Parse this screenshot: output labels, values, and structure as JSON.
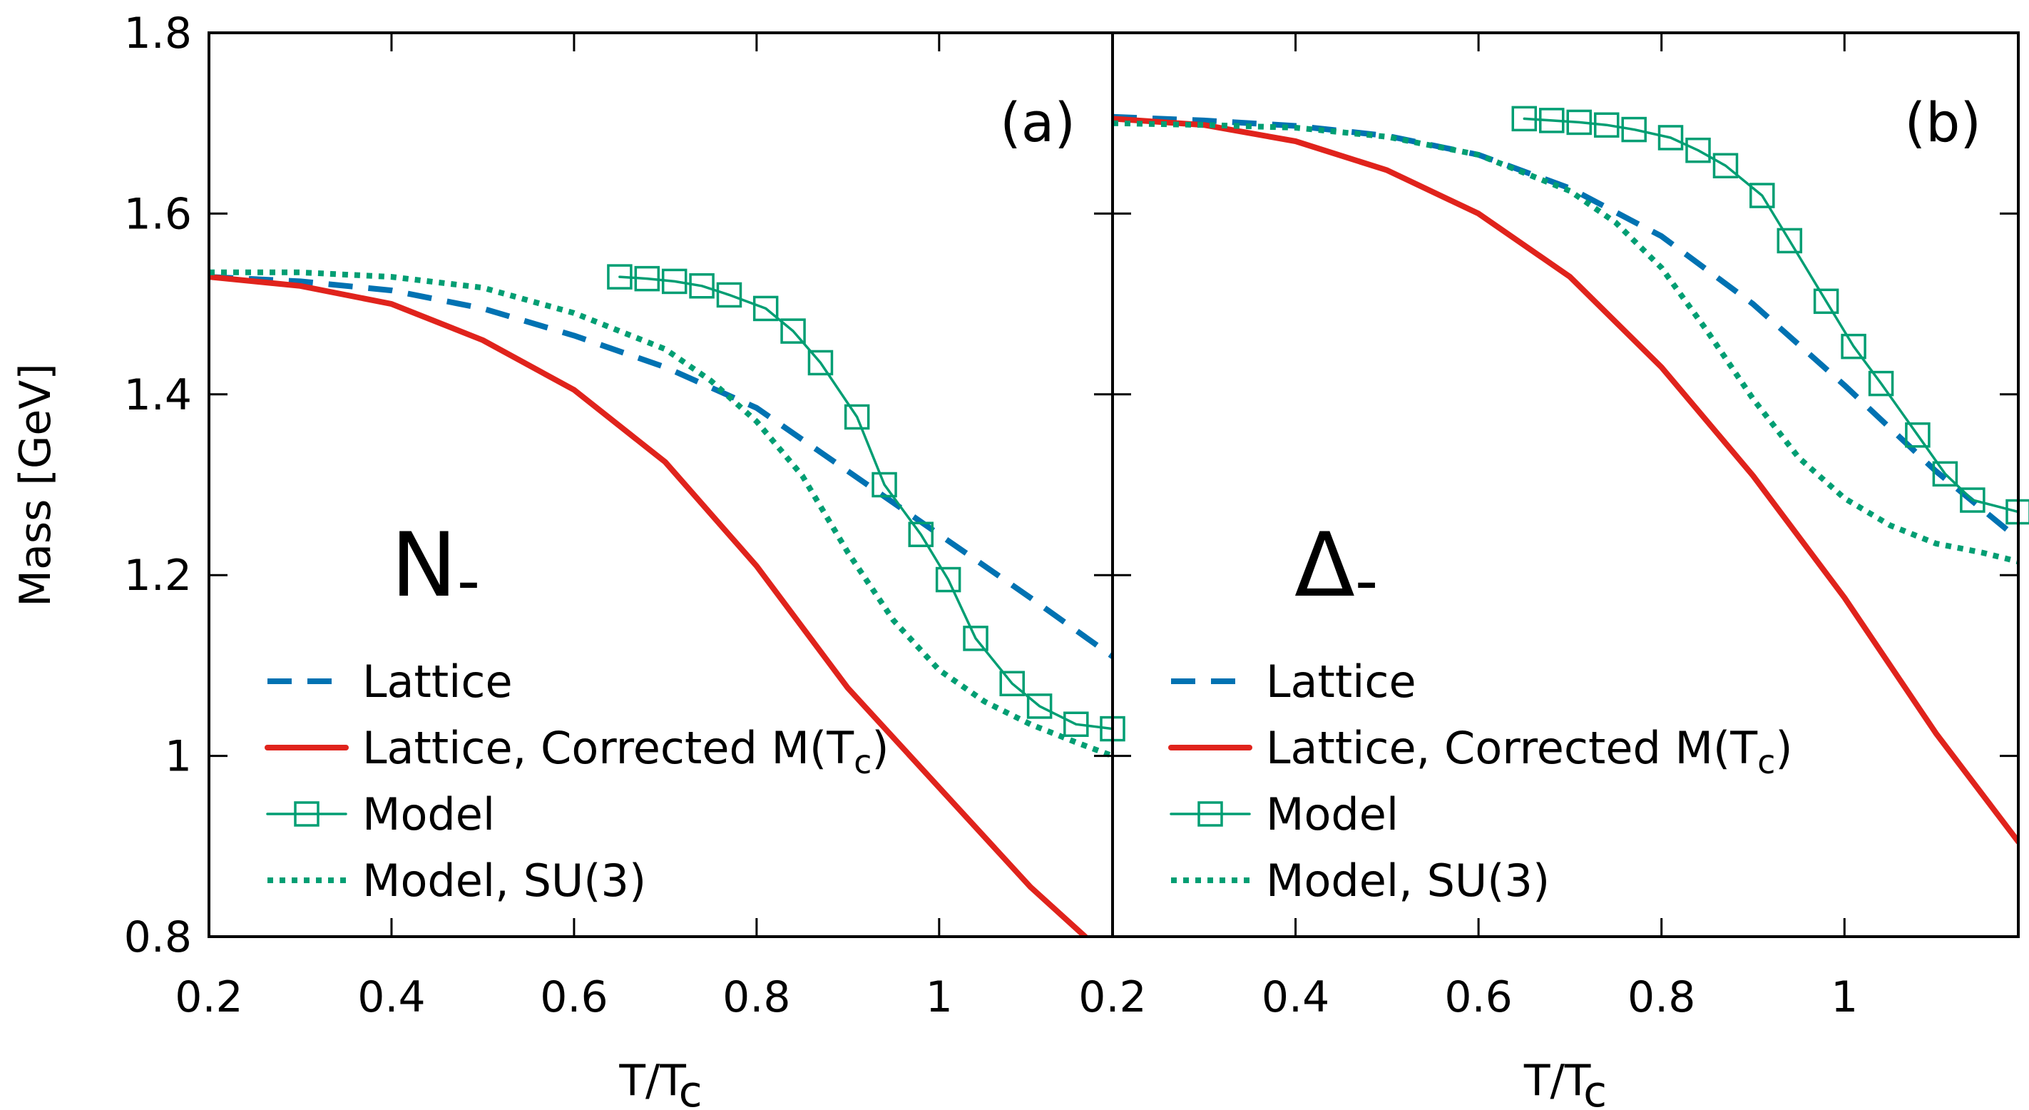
{
  "chart_data": {
    "type": "line",
    "ylabel": "Mass [GeV]",
    "xlabel": "T/T",
    "xlabel_sub": "c",
    "ylim": [
      0.8,
      1.8
    ],
    "yticks": [
      "0.8",
      "1",
      "1.2",
      "1.4",
      "1.6",
      "1.8"
    ],
    "xticks_a": [
      "0.2",
      "0.4",
      "0.6",
      "0.8",
      "1"
    ],
    "xticks_b": [
      "0.2",
      "0.4",
      "0.6",
      "0.8",
      "1"
    ],
    "colors": {
      "lattice": "#0072b2",
      "corrected": "#e0231c",
      "model": "#009e73"
    },
    "legend": [
      {
        "label": "Lattice"
      },
      {
        "label": "Lattice, Corrected M(T",
        "sub": "c",
        "tail": ")"
      },
      {
        "label": "Model"
      },
      {
        "label": "Model, SU(3)"
      }
    ],
    "panels": [
      {
        "label": "(a)",
        "particle": "N",
        "particle_sub": "-",
        "xlim": [
          0.2,
          1.19
        ],
        "series": [
          {
            "name": "Lattice",
            "style": "dashed",
            "x": [
              0.2,
              0.3,
              0.4,
              0.5,
              0.6,
              0.7,
              0.8,
              0.9,
              1.0,
              1.1,
              1.19
            ],
            "y": [
              1.53,
              1.525,
              1.515,
              1.495,
              1.465,
              1.43,
              1.385,
              1.315,
              1.245,
              1.175,
              1.11
            ]
          },
          {
            "name": "Lattice, Corrected M(Tc)",
            "style": "solid",
            "x": [
              0.2,
              0.3,
              0.4,
              0.5,
              0.6,
              0.7,
              0.8,
              0.9,
              1.0,
              1.1,
              1.16
            ],
            "y": [
              1.53,
              1.52,
              1.5,
              1.46,
              1.405,
              1.325,
              1.21,
              1.075,
              0.965,
              0.855,
              0.8
            ]
          },
          {
            "name": "Model",
            "style": "solid-markers",
            "x": [
              0.65,
              0.68,
              0.71,
              0.74,
              0.77,
              0.81,
              0.84,
              0.87,
              0.91,
              0.94,
              0.98,
              1.01,
              1.04,
              1.08,
              1.11,
              1.15,
              1.19
            ],
            "y": [
              1.53,
              1.528,
              1.525,
              1.52,
              1.51,
              1.495,
              1.47,
              1.435,
              1.375,
              1.3,
              1.245,
              1.195,
              1.13,
              1.08,
              1.055,
              1.035,
              1.03
            ]
          },
          {
            "name": "Model, SU(3)",
            "style": "dotted",
            "x": [
              0.2,
              0.3,
              0.4,
              0.5,
              0.6,
              0.7,
              0.75,
              0.8,
              0.85,
              0.9,
              0.95,
              1.0,
              1.05,
              1.1,
              1.15,
              1.19
            ],
            "y": [
              1.535,
              1.535,
              1.53,
              1.518,
              1.49,
              1.45,
              1.415,
              1.37,
              1.31,
              1.225,
              1.15,
              1.095,
              1.06,
              1.035,
              1.015,
              1.0
            ]
          }
        ]
      },
      {
        "label": "(b)",
        "particle": "Δ",
        "particle_sub": "-",
        "xlim": [
          0.2,
          1.19
        ],
        "series": [
          {
            "name": "Lattice",
            "style": "dashed",
            "x": [
              0.2,
              0.3,
              0.4,
              0.5,
              0.6,
              0.7,
              0.8,
              0.9,
              1.0,
              1.1,
              1.19
            ],
            "y": [
              1.707,
              1.703,
              1.697,
              1.686,
              1.665,
              1.628,
              1.575,
              1.5,
              1.41,
              1.315,
              1.24
            ]
          },
          {
            "name": "Lattice, Corrected M(Tc)",
            "style": "solid",
            "x": [
              0.2,
              0.3,
              0.4,
              0.5,
              0.6,
              0.7,
              0.8,
              0.9,
              1.0,
              1.1,
              1.19
            ],
            "y": [
              1.705,
              1.698,
              1.68,
              1.648,
              1.6,
              1.53,
              1.43,
              1.31,
              1.175,
              1.025,
              0.905
            ]
          },
          {
            "name": "Model",
            "style": "solid-markers",
            "x": [
              0.65,
              0.68,
              0.71,
              0.74,
              0.77,
              0.81,
              0.84,
              0.87,
              0.91,
              0.94,
              0.98,
              1.01,
              1.04,
              1.08,
              1.11,
              1.14,
              1.19
            ],
            "y": [
              1.705,
              1.703,
              1.701,
              1.698,
              1.693,
              1.684,
              1.67,
              1.653,
              1.62,
              1.57,
              1.503,
              1.453,
              1.412,
              1.355,
              1.312,
              1.283,
              1.27
            ]
          },
          {
            "name": "Model, SU(3)",
            "style": "dotted",
            "x": [
              0.2,
              0.3,
              0.4,
              0.5,
              0.6,
              0.7,
              0.75,
              0.8,
              0.85,
              0.9,
              0.95,
              1.0,
              1.05,
              1.1,
              1.15,
              1.19
            ],
            "y": [
              1.7,
              1.698,
              1.695,
              1.685,
              1.665,
              1.625,
              1.59,
              1.54,
              1.47,
              1.395,
              1.33,
              1.285,
              1.255,
              1.235,
              1.225,
              1.215
            ]
          }
        ]
      }
    ]
  }
}
